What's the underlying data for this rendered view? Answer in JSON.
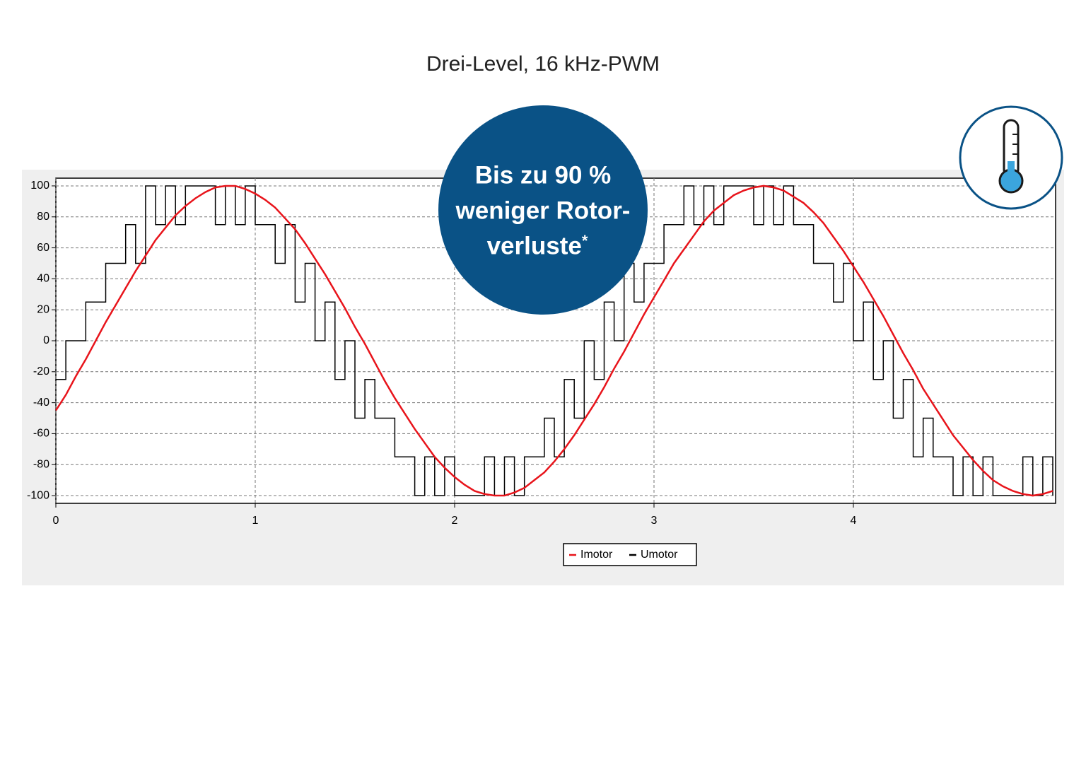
{
  "chart_data": {
    "type": "line",
    "title": "Drei-Level, 16 kHz-PWM",
    "x": [
      0,
      0.05,
      0.1,
      0.15,
      0.2,
      0.25,
      0.3,
      0.35,
      0.4,
      0.45,
      0.5,
      0.55,
      0.6,
      0.65,
      0.7,
      0.75,
      0.8,
      0.85,
      0.9,
      0.95,
      1,
      1.05,
      1.1,
      1.15,
      1.2,
      1.25,
      1.3,
      1.35,
      1.4,
      1.45,
      1.5,
      1.55,
      1.6,
      1.65,
      1.7,
      1.75,
      1.8,
      1.85,
      1.9,
      1.95,
      2,
      2.05,
      2.1,
      2.15,
      2.2,
      2.25,
      2.3,
      2.35,
      2.4,
      2.45,
      2.5,
      2.55,
      2.6,
      2.65,
      2.7,
      2.75,
      2.8,
      2.85,
      2.9,
      2.95,
      3,
      3.05,
      3.1,
      3.15,
      3.2,
      3.25,
      3.3,
      3.35,
      3.4,
      3.45,
      3.5,
      3.55,
      3.6,
      3.65,
      3.7,
      3.75,
      3.8,
      3.85,
      3.9,
      3.95,
      4,
      4.05,
      4.1,
      4.15,
      4.2,
      4.25,
      4.3,
      4.35,
      4.4,
      4.45,
      4.5,
      4.55,
      4.6,
      4.65,
      4.7,
      4.75,
      4.8,
      4.85,
      4.9,
      4.95,
      5
    ],
    "series": [
      {
        "name": "Umotor",
        "color": "#000000",
        "step": true,
        "values": [
          -25,
          0,
          0,
          25,
          25,
          50,
          50,
          75,
          50,
          100,
          75,
          100,
          75,
          100,
          100,
          100,
          75,
          100,
          75,
          100,
          75,
          75,
          50,
          75,
          25,
          50,
          0,
          25,
          -25,
          0,
          -50,
          -25,
          -50,
          -50,
          -75,
          -75,
          -100,
          -75,
          -100,
          -75,
          -100,
          -100,
          -100,
          -75,
          -100,
          -75,
          -100,
          -75,
          -75,
          -50,
          -75,
          -25,
          -50,
          0,
          -25,
          25,
          0,
          50,
          25,
          50,
          50,
          75,
          75,
          100,
          75,
          100,
          75,
          100,
          100,
          100,
          75,
          100,
          75,
          100,
          75,
          75,
          50,
          50,
          25,
          50,
          0,
          25,
          -25,
          0,
          -50,
          -25,
          -75,
          -50,
          -75,
          -75,
          -100,
          -75,
          -100,
          -75,
          -100,
          -100,
          -100,
          -75,
          -100,
          -75,
          -100
        ]
      },
      {
        "name": "Imotor",
        "color": "#e8141b",
        "step": false,
        "values": [
          -45,
          -35,
          -23,
          -12,
          0,
          12,
          23,
          34,
          45,
          55,
          65,
          73,
          81,
          87,
          92,
          96,
          99,
          100,
          100,
          98,
          95,
          91,
          86,
          79,
          72,
          63,
          53,
          43,
          32,
          21,
          9,
          -2,
          -14,
          -26,
          -37,
          -47,
          -57,
          -66,
          -75,
          -82,
          -88,
          -93,
          -97,
          -99,
          -100,
          -100,
          -98,
          -95,
          -90,
          -85,
          -78,
          -70,
          -61,
          -51,
          -41,
          -30,
          -18,
          -7,
          5,
          17,
          28,
          39,
          50,
          59,
          68,
          77,
          84,
          89,
          94,
          97,
          99,
          100,
          99,
          97,
          93,
          89,
          83,
          76,
          67,
          58,
          48,
          38,
          27,
          16,
          4,
          -8,
          -19,
          -31,
          -41,
          -51,
          -61,
          -69,
          -77,
          -84,
          -90,
          -94,
          -97,
          -99,
          -100,
          -99,
          -97
        ]
      }
    ],
    "xlim": [
      0,
      5
    ],
    "xticks": [
      0,
      1,
      2,
      3,
      4
    ],
    "ylim": [
      -105,
      105
    ],
    "yticks": [
      100,
      80,
      60,
      40,
      20,
      0,
      -20,
      -40,
      -60,
      -80,
      -100
    ],
    "grid": true,
    "legend": "bottom"
  },
  "badge": {
    "lines": [
      "Bis zu 90 %",
      "weniger Rotor-",
      "verluste"
    ],
    "footnote_mark": "*"
  }
}
